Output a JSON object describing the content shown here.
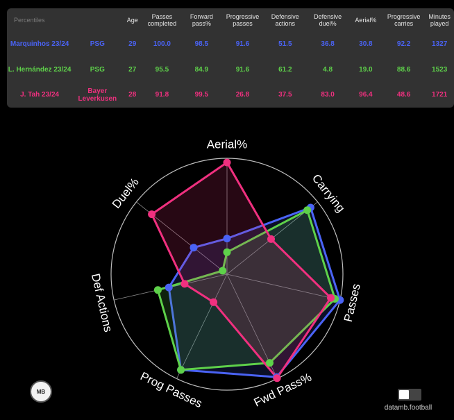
{
  "table": {
    "corner": "Percentiles",
    "headers": [
      "Age",
      "Passes completed",
      "Forward pass%",
      "Progressive passes",
      "Defensive actions",
      "Defensive duel%",
      "Aerial%",
      "Progressive carries",
      "Minutes played"
    ],
    "rows": [
      {
        "player": "Marquinhos 23/24",
        "team": "PSG",
        "color": "#4a63f5",
        "values": [
          "29",
          "100.0",
          "98.5",
          "91.6",
          "51.5",
          "36.8",
          "30.8",
          "92.2",
          "1327"
        ]
      },
      {
        "player": "L. Hernández 23/24",
        "team": "PSG",
        "color": "#5ed14a",
        "values": [
          "27",
          "95.5",
          "84.9",
          "91.6",
          "61.2",
          "4.8",
          "19.0",
          "88.6",
          "1523"
        ]
      },
      {
        "player": "J. Tah 23/24",
        "team": "Bayer Leverkusen",
        "color": "#f0307f",
        "values": [
          "28",
          "91.8",
          "99.5",
          "26.8",
          "37.5",
          "83.0",
          "96.4",
          "48.6",
          "1721"
        ]
      }
    ]
  },
  "chart_data": {
    "type": "radar",
    "axes": [
      "Aerial%",
      "Carrying",
      "Passes",
      "Fwd Pass%",
      "Prog Passes",
      "Def Actions",
      "Duel%"
    ],
    "rlim": [
      0,
      100
    ],
    "series": [
      {
        "name": "Marquinhos 23/24",
        "color": "#4a63f5",
        "values": [
          30.8,
          92.2,
          100.0,
          98.5,
          91.6,
          51.5,
          36.8
        ]
      },
      {
        "name": "L. Hernández 23/24",
        "color": "#5ed14a",
        "values": [
          19.0,
          88.6,
          95.5,
          84.9,
          91.6,
          61.2,
          4.8
        ]
      },
      {
        "name": "J. Tah 23/24",
        "color": "#f0307f",
        "values": [
          96.4,
          48.6,
          91.8,
          99.5,
          26.8,
          37.5,
          83.0
        ]
      }
    ]
  },
  "branding": {
    "logo_text": "MB",
    "watermark": "datamb.football"
  }
}
